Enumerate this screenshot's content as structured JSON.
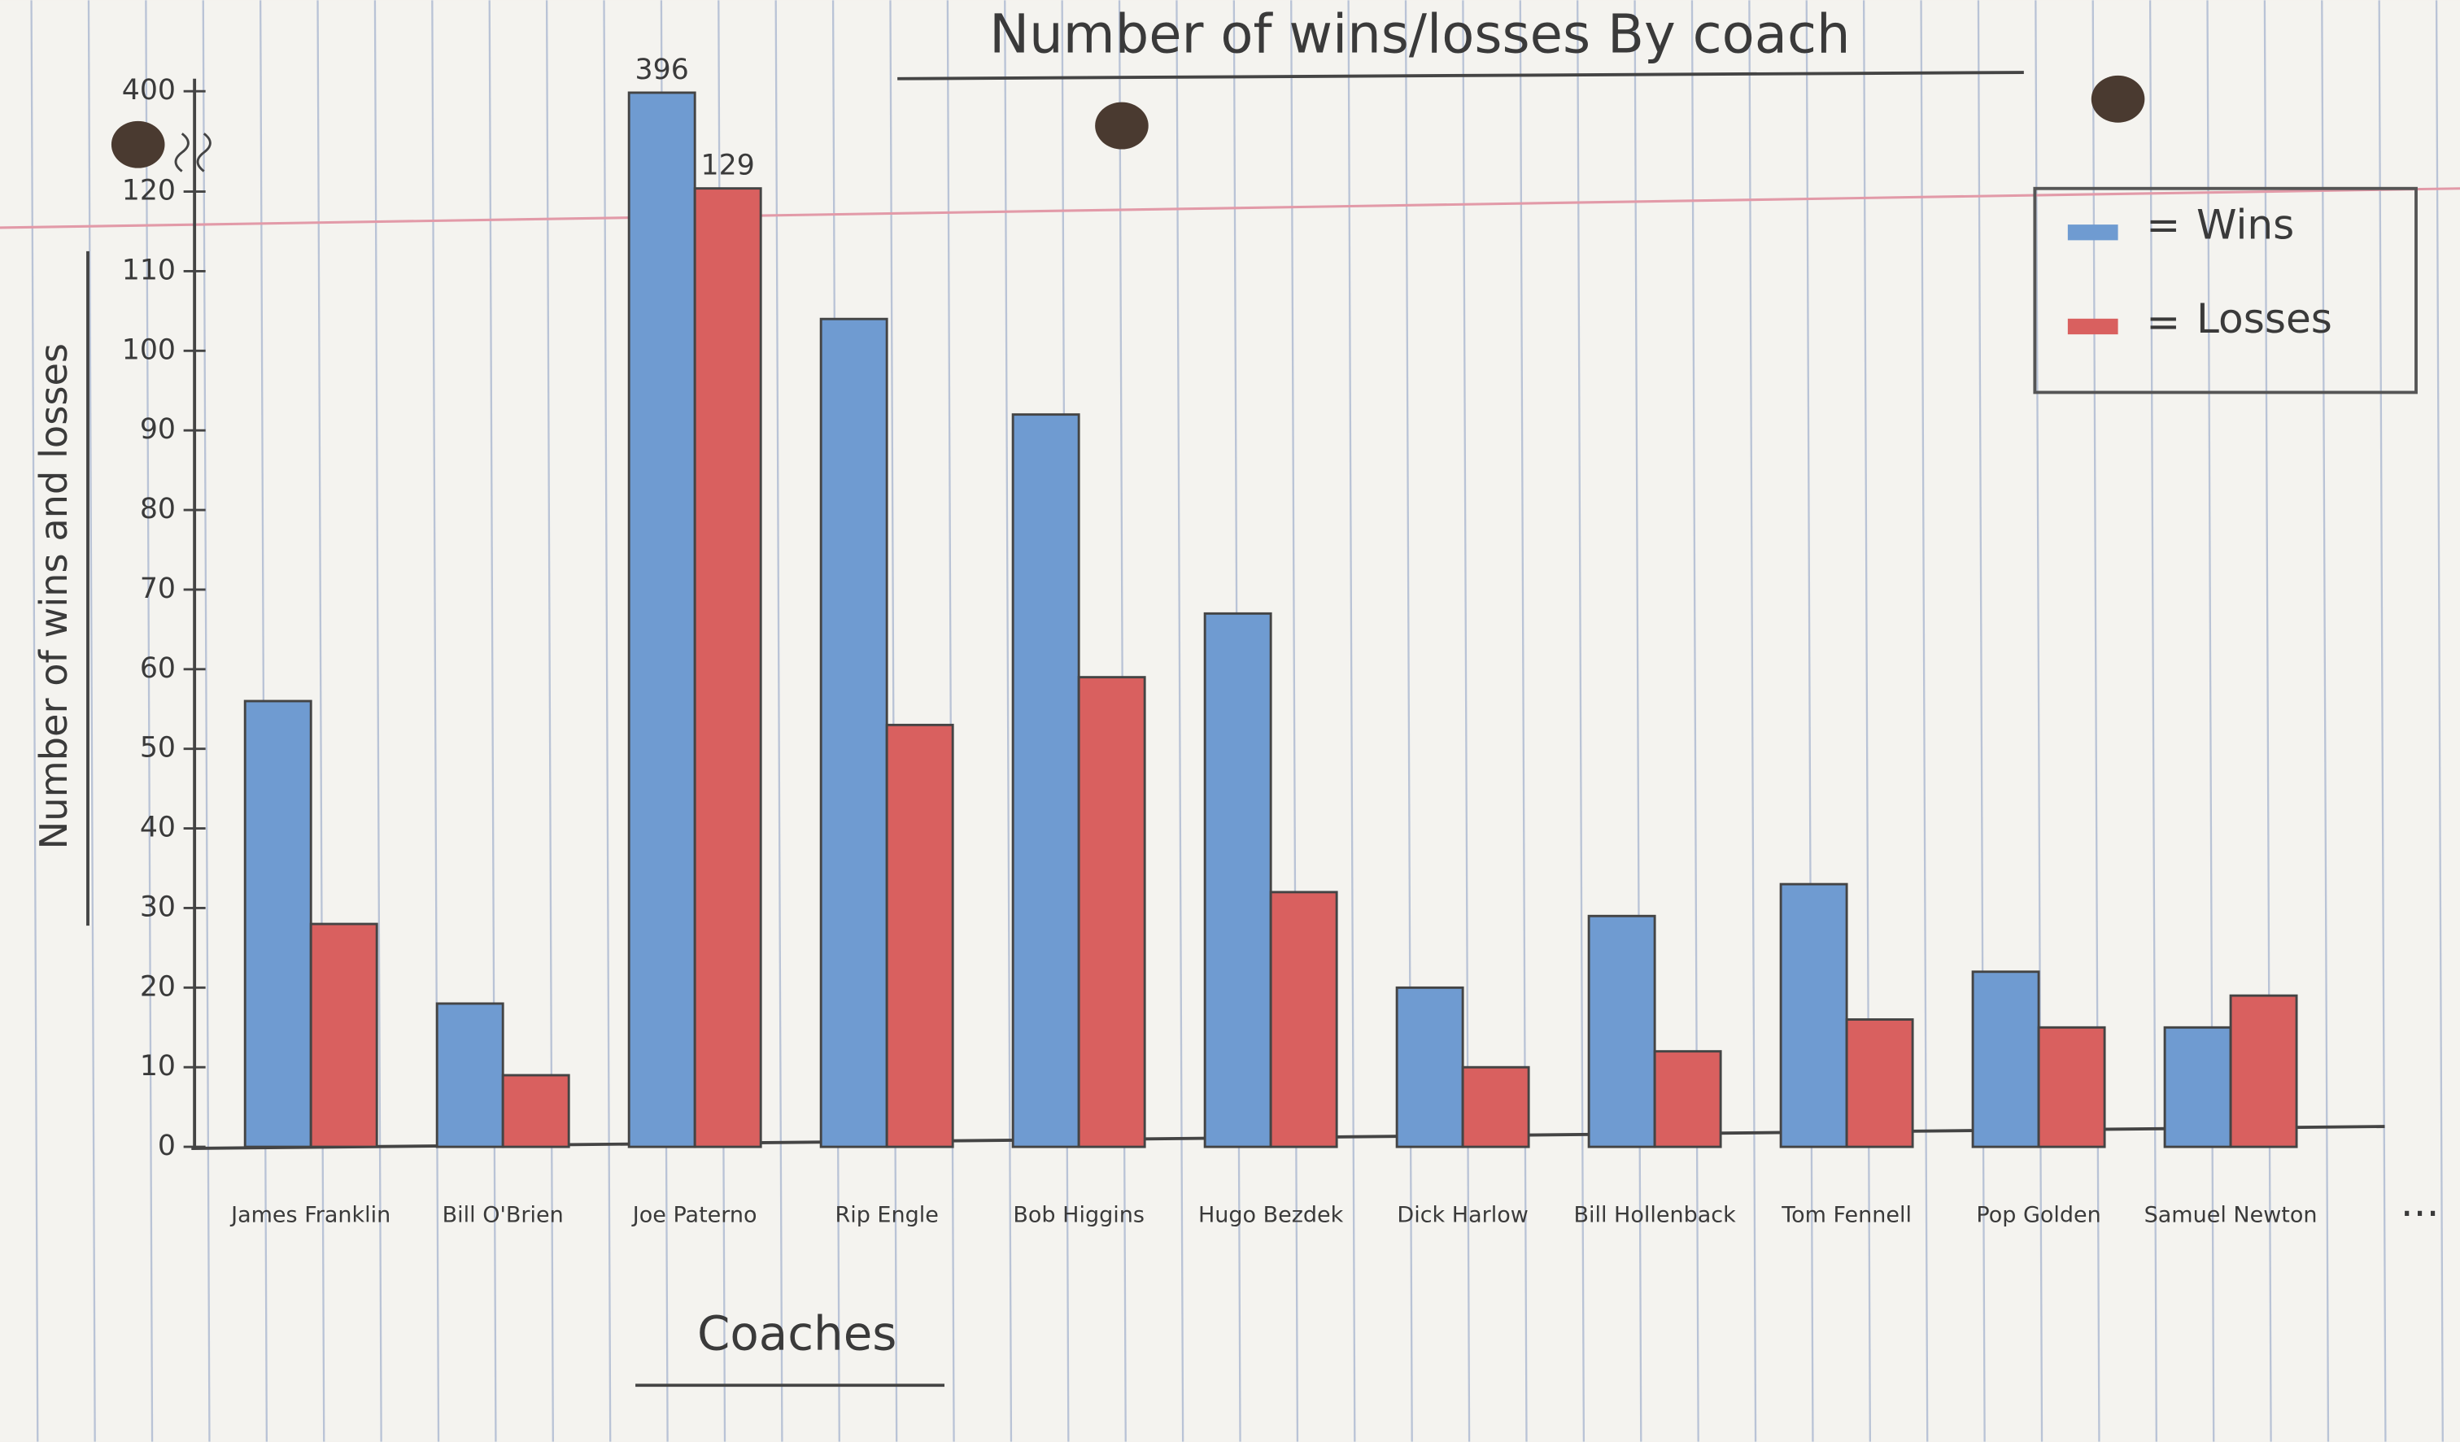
{
  "chart_data": {
    "type": "bar",
    "title": "Number of wins/losses By coach",
    "x_label": "Coaches",
    "y_label": "Number of wins and losses",
    "categories": [
      "James Franklin",
      "Bill O'Brien",
      "Joe Paterno",
      "Rip Engle",
      "Bob Higgins",
      "Hugo Bezdek",
      "Dick Harlow",
      "Bill Hollenback",
      "Tom Fennell",
      "Pop Golden",
      "Samuel Newton"
    ],
    "series": [
      {
        "name": "Wins",
        "color": "#6f9bd1",
        "values": [
          56,
          18,
          396,
          104,
          92,
          67,
          20,
          29,
          33,
          22,
          15
        ],
        "value_labels": [
          null,
          null,
          "396",
          null,
          null,
          null,
          null,
          null,
          null,
          null,
          null
        ]
      },
      {
        "name": "Losses",
        "color": "#d9605f",
        "values": [
          28,
          9,
          129,
          53,
          59,
          32,
          10,
          12,
          16,
          15,
          19
        ],
        "value_labels": [
          null,
          null,
          "129",
          null,
          null,
          null,
          null,
          null,
          null,
          null,
          null
        ]
      }
    ],
    "ylim": [
      0,
      400
    ],
    "yticks": [
      0,
      10,
      20,
      30,
      40,
      50,
      60,
      70,
      80,
      90,
      100,
      110,
      120,
      400
    ],
    "axis_break": true,
    "grid": false,
    "legend": "top-right",
    "annotation": "..."
  }
}
